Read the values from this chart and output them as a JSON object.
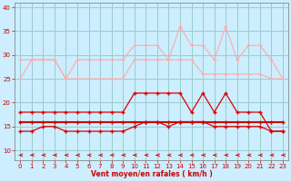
{
  "x": [
    0,
    1,
    2,
    3,
    4,
    5,
    6,
    7,
    8,
    9,
    10,
    11,
    12,
    13,
    14,
    15,
    16,
    17,
    18,
    19,
    20,
    21,
    22,
    23
  ],
  "line_pink_upper": [
    29,
    29,
    29,
    29,
    25,
    29,
    29,
    29,
    29,
    29,
    32,
    32,
    32,
    29,
    36,
    32,
    32,
    29,
    36,
    29,
    32,
    32,
    29,
    25
  ],
  "line_pink_lower": [
    25,
    29,
    29,
    29,
    25,
    25,
    25,
    25,
    25,
    25,
    29,
    29,
    29,
    29,
    29,
    29,
    26,
    26,
    26,
    26,
    26,
    26,
    25,
    25
  ],
  "line_red_upper": [
    18,
    18,
    18,
    18,
    18,
    18,
    18,
    18,
    18,
    18,
    22,
    22,
    22,
    22,
    22,
    18,
    22,
    18,
    22,
    18,
    18,
    18,
    14,
    14
  ],
  "line_red_lower": [
    14,
    14,
    15,
    15,
    14,
    14,
    14,
    14,
    14,
    14,
    15,
    16,
    16,
    15,
    16,
    16,
    16,
    15,
    15,
    15,
    15,
    15,
    14,
    14
  ],
  "line_red_flat": [
    16,
    16,
    16,
    16,
    16,
    16,
    16,
    16,
    16,
    16,
    16,
    16,
    16,
    16,
    16,
    16,
    16,
    16,
    16,
    16,
    16,
    16,
    16,
    16
  ],
  "xlabel": "Vent moyen/en rafales ( km/h )",
  "bg_color": "#cceeff",
  "grid_color": "#99cccc",
  "line_pink_color": "#ffaaaa",
  "line_red_color": "#dd0000",
  "line_flat_color": "#cc0000",
  "arrow_color": "#cc0000",
  "tick_color": "#cc0000",
  "ylim": [
    8,
    41
  ],
  "xlim": [
    -0.5,
    23.5
  ],
  "yticks": [
    10,
    15,
    20,
    25,
    30,
    35,
    40
  ],
  "xticks": [
    0,
    1,
    2,
    3,
    4,
    5,
    6,
    7,
    8,
    9,
    10,
    11,
    12,
    13,
    14,
    15,
    16,
    17,
    18,
    19,
    20,
    21,
    22,
    23
  ]
}
